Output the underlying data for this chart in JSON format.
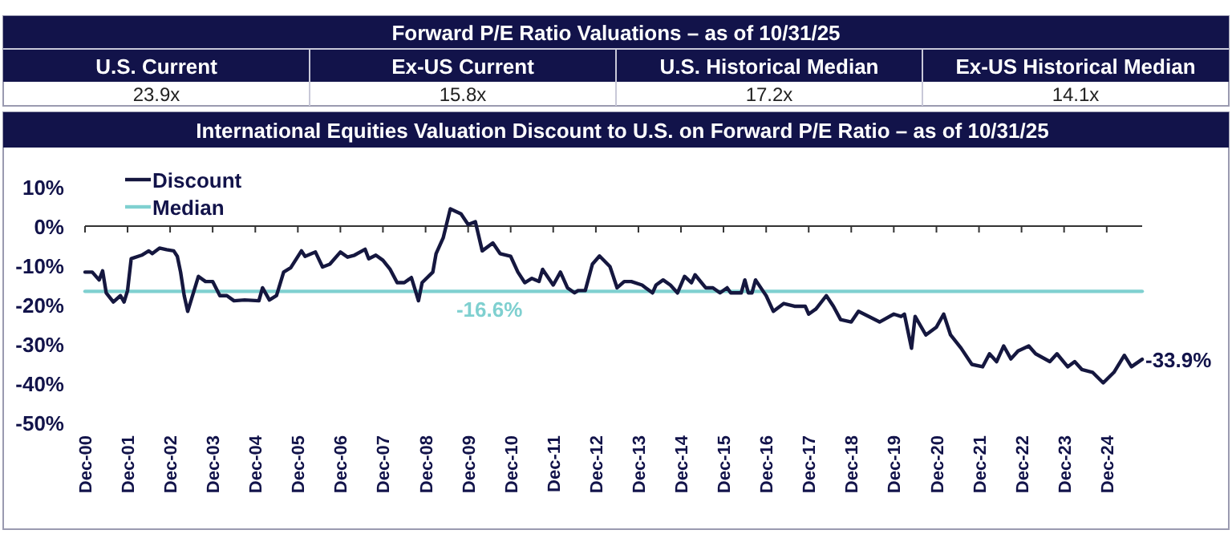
{
  "chart_data": [
    {
      "type": "other",
      "title": "Forward P/E Ratio Valuations – as of 10/31/25",
      "categories": [
        "U.S. Current",
        "Ex-US Current",
        "U.S. Historical Median",
        "Ex-US Historical Median"
      ],
      "value_labels": [
        "23.9x",
        "15.8x",
        "17.2x",
        "14.1x"
      ]
    },
    {
      "type": "line",
      "title": "International Equities Valuation Discount to U.S. on Forward P/E Ratio – as of 10/31/25",
      "legend": "top left",
      "xlim": [
        "2000-12",
        "2025-10"
      ],
      "ylim": [
        -50,
        10
      ],
      "xticks": [
        {
          "value": "2000-12",
          "label": "Dec-00"
        },
        {
          "value": "2001-12",
          "label": "Dec-01"
        },
        {
          "value": "2002-12",
          "label": "Dec-02"
        },
        {
          "value": "2003-12",
          "label": "Dec-03"
        },
        {
          "value": "2004-12",
          "label": "Dec-04"
        },
        {
          "value": "2005-12",
          "label": "Dec-05"
        },
        {
          "value": "2006-12",
          "label": "Dec-06"
        },
        {
          "value": "2007-12",
          "label": "Dec-07"
        },
        {
          "value": "2008-12",
          "label": "Dec-08"
        },
        {
          "value": "2009-12",
          "label": "Dec-09"
        },
        {
          "value": "2010-12",
          "label": "Dec-10"
        },
        {
          "value": "2011-12",
          "label": "Dec-11"
        },
        {
          "value": "2012-12",
          "label": "Dec-12"
        },
        {
          "value": "2013-12",
          "label": "Dec-13"
        },
        {
          "value": "2014-12",
          "label": "Dec-14"
        },
        {
          "value": "2015-12",
          "label": "Dec-15"
        },
        {
          "value": "2016-12",
          "label": "Dec-16"
        },
        {
          "value": "2017-12",
          "label": "Dec-17"
        },
        {
          "value": "2018-12",
          "label": "Dec-18"
        },
        {
          "value": "2019-12",
          "label": "Dec-19"
        },
        {
          "value": "2020-12",
          "label": "Dec-20"
        },
        {
          "value": "2021-12",
          "label": "Dec-21"
        },
        {
          "value": "2022-12",
          "label": "Dec-22"
        },
        {
          "value": "2023-12",
          "label": "Dec-23"
        },
        {
          "value": "2024-12",
          "label": "Dec-24"
        }
      ],
      "yticks": [
        {
          "value": 10,
          "label": "10%"
        },
        {
          "value": 0,
          "label": "0%"
        },
        {
          "value": -10,
          "label": "-10%"
        },
        {
          "value": -20,
          "label": "-20%"
        },
        {
          "value": -30,
          "label": "-30%"
        },
        {
          "value": -40,
          "label": "-40%"
        },
        {
          "value": -50,
          "label": "-50%"
        }
      ],
      "series": [
        {
          "name": "Discount",
          "color": "#15173f",
          "x": [
            "2000-12",
            "2001-02",
            "2001-04",
            "2001-05",
            "2001-06",
            "2001-08",
            "2001-10",
            "2001-11",
            "2001-12",
            "2002-01",
            "2002-04",
            "2002-06",
            "2002-07",
            "2002-09",
            "2002-11",
            "2003-01",
            "2003-02",
            "2003-03",
            "2003-04",
            "2003-05",
            "2003-08",
            "2003-10",
            "2003-12",
            "2004-02",
            "2004-04",
            "2004-06",
            "2004-09",
            "2005-01",
            "2005-02",
            "2005-04",
            "2005-06",
            "2005-08",
            "2005-10",
            "2006-01",
            "2006-02",
            "2006-05",
            "2006-07",
            "2006-09",
            "2006-12",
            "2007-02",
            "2007-04",
            "2007-07",
            "2007-08",
            "2007-10",
            "2007-12",
            "2008-02",
            "2008-04",
            "2008-06",
            "2008-08",
            "2008-10",
            "2008-11",
            "2009-02",
            "2009-03",
            "2009-05",
            "2009-07",
            "2009-10",
            "2009-12",
            "2010-02",
            "2010-04",
            "2010-07",
            "2010-09",
            "2010-12",
            "2011-02",
            "2011-04",
            "2011-06",
            "2011-08",
            "2011-09",
            "2011-12",
            "2012-02",
            "2012-04",
            "2012-06",
            "2012-07",
            "2012-09",
            "2012-11",
            "2013-01",
            "2013-04",
            "2013-06",
            "2013-08",
            "2013-10",
            "2014-01",
            "2014-02",
            "2014-04",
            "2014-05",
            "2014-07",
            "2014-09",
            "2014-11",
            "2015-01",
            "2015-03",
            "2015-04",
            "2015-07",
            "2015-09",
            "2015-11",
            "2016-01",
            "2016-02",
            "2016-05",
            "2016-06",
            "2016-07",
            "2016-08",
            "2016-09",
            "2016-11",
            "2016-12",
            "2017-02",
            "2017-05",
            "2017-08",
            "2017-11",
            "2017-12",
            "2018-02",
            "2018-05",
            "2018-07",
            "2018-09",
            "2018-12",
            "2019-02",
            "2019-05",
            "2019-08",
            "2019-12",
            "2020-02",
            "2020-03",
            "2020-05",
            "2020-06",
            "2020-09",
            "2020-12",
            "2021-02",
            "2021-04",
            "2021-07",
            "2021-10",
            "2022-01",
            "2022-03",
            "2022-05",
            "2022-07",
            "2022-09",
            "2022-11",
            "2023-02",
            "2023-04",
            "2023-08",
            "2023-10",
            "2024-01",
            "2024-03",
            "2024-05",
            "2024-08",
            "2024-11",
            "2025-02",
            "2025-05",
            "2025-07",
            "2025-10"
          ],
          "values": [
            -11.7,
            -11.7,
            -13.7,
            -11.4,
            -17,
            -19.3,
            -17.7,
            -19.3,
            -16.4,
            -8.3,
            -7.4,
            -6.3,
            -7,
            -5.6,
            -6,
            -6.3,
            -7.7,
            -11.7,
            -17.7,
            -21.7,
            -12.8,
            -14.1,
            -14.1,
            -17.7,
            -17.7,
            -19,
            -18.8,
            -19,
            -15.7,
            -18.8,
            -17.7,
            -11.7,
            -10.6,
            -6.3,
            -7.7,
            -6.6,
            -10.4,
            -9.7,
            -6.6,
            -7.9,
            -7.4,
            -5.9,
            -8.3,
            -7.4,
            -8.7,
            -11,
            -14.4,
            -14.4,
            -13.1,
            -19,
            -14.4,
            -11.7,
            -7,
            -3,
            4.4,
            3.1,
            0.4,
            1.1,
            -6.3,
            -4.3,
            -7,
            -7.7,
            -11.7,
            -14.4,
            -13.3,
            -14.1,
            -11,
            -15,
            -11.7,
            -15.7,
            -17,
            -16.4,
            -16.4,
            -9.7,
            -7.6,
            -10.3,
            -15.7,
            -14.1,
            -14.1,
            -15,
            -15.7,
            -17,
            -15,
            -13.7,
            -15,
            -17,
            -12.8,
            -14.4,
            -12.4,
            -15.7,
            -15.7,
            -17,
            -15.7,
            -17,
            -17,
            -13.7,
            -17,
            -17,
            -13.7,
            -16.4,
            -17.7,
            -21.7,
            -19.7,
            -20.4,
            -20.4,
            -22.4,
            -21.1,
            -17.7,
            -20.4,
            -23.8,
            -24.4,
            -21.7,
            -23,
            -24.4,
            -22.4,
            -23,
            -22.4,
            -31.1,
            -23,
            -27.7,
            -25.7,
            -22.4,
            -27.7,
            -31.1,
            -35.2,
            -35.8,
            -32.5,
            -34.5,
            -30.5,
            -33.8,
            -31.8,
            -30.5,
            -32.5,
            -34.5,
            -32.5,
            -35.8,
            -34.5,
            -36.5,
            -37.2,
            -39.9,
            -37.2,
            -32.9,
            -35.8,
            -33.9
          ]
        },
        {
          "name": "Median",
          "color": "#7fd0d0",
          "x": [
            "2000-12",
            "2025-10"
          ],
          "values": [
            -16.6,
            -16.6
          ]
        }
      ],
      "annotations": [
        {
          "text": "-16.6%",
          "x": "2010-06",
          "y": -16.6
        },
        {
          "text": "-33.9%",
          "x": "2025-10",
          "y": -33.9
        }
      ]
    }
  ]
}
